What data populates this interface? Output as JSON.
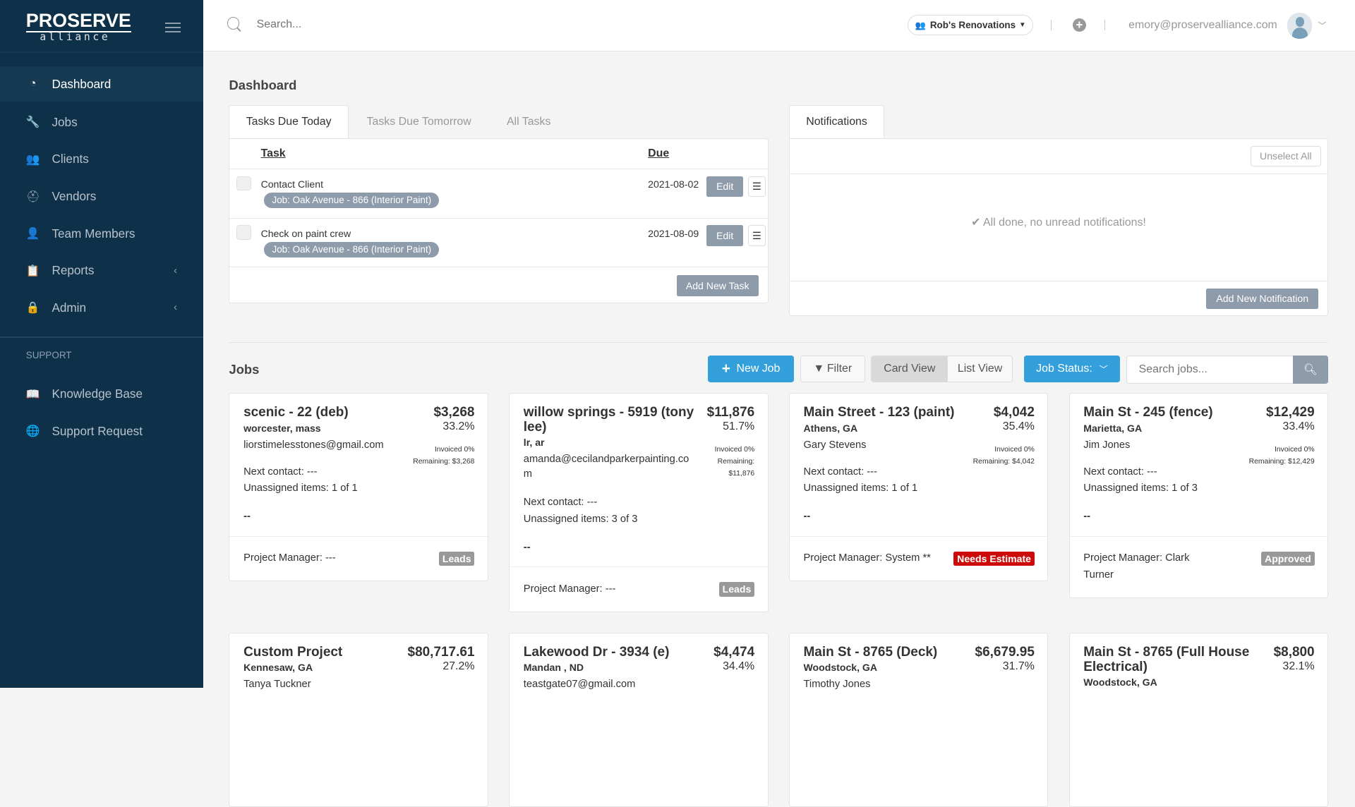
{
  "app": {
    "logo_top": "ProServe",
    "logo_bottom": "alliance"
  },
  "sidebar": {
    "items": [
      {
        "label": "Dashboard",
        "icon": "dashboard-icon",
        "glyph": "◔",
        "active": true
      },
      {
        "label": "Jobs",
        "icon": "wrench-icon",
        "glyph": "🔧"
      },
      {
        "label": "Clients",
        "icon": "users-icon",
        "glyph": "👥"
      },
      {
        "label": "Vendors",
        "icon": "hard-hat-icon",
        "glyph": "⛑"
      },
      {
        "label": "Team Members",
        "icon": "user-lock-icon",
        "glyph": "👤"
      },
      {
        "label": "Reports",
        "icon": "clipboard-icon",
        "glyph": "📋",
        "chevron": true
      },
      {
        "label": "Admin",
        "icon": "lock-icon",
        "glyph": "🔒",
        "chevron": true
      }
    ],
    "support_heading": "SUPPORT",
    "support_items": [
      {
        "label": "Knowledge Base",
        "icon": "book-icon",
        "glyph": "📖"
      },
      {
        "label": "Support Request",
        "icon": "globe-icon",
        "glyph": "🌐"
      }
    ]
  },
  "topbar": {
    "search_placeholder": "Search...",
    "org": "Rob's Renovations",
    "email": "emory@proservealliance.com"
  },
  "dashboard": {
    "title": "Dashboard",
    "tasks": {
      "tabs": [
        "Tasks Due Today",
        "Tasks Due Tomorrow",
        "All Tasks"
      ],
      "col_task": "Task",
      "col_due": "Due",
      "edit_label": "Edit",
      "add_label": "Add New Task",
      "rows": [
        {
          "name": "Contact Client",
          "job": "Job: Oak Avenue - 866 (Interior Paint)",
          "due": "2021-08-02"
        },
        {
          "name": "Check on paint crew",
          "job": "Job: Oak Avenue - 866 (Interior Paint)",
          "due": "2021-08-09"
        }
      ]
    },
    "notifications": {
      "tab": "Notifications",
      "unselect_label": "Unselect All",
      "empty": "All done, no unread notifications!",
      "add_label": "Add New Notification"
    }
  },
  "jobs": {
    "title": "Jobs",
    "new_job": "New Job",
    "filter": "Filter",
    "card_view": "Card View",
    "list_view": "List View",
    "job_status": "Job Status:",
    "search_placeholder": "Search jobs...",
    "colors": {
      "accent": "#33a0dc",
      "needs_estimate": "#cc0a0a",
      "neutral_badge": "#999999"
    },
    "cards": [
      {
        "title": "scenic - 22 (deb)",
        "amount": "$3,268",
        "pct": "33.2%",
        "location": "worcester, mass",
        "contact": "liorstimelesstones@gmail.com",
        "invoiced": "Invoiced 0%",
        "remaining": "Remaining: $3,268",
        "next_contact": "Next contact: ---",
        "unassigned": "Unassigned items: 1 of 1",
        "note": "--",
        "pm": "Project Manager: ---",
        "status": "Leads",
        "status_color": "#999999"
      },
      {
        "title": "willow springs - 5919 (tony lee)",
        "amount": "$11,876",
        "pct": "51.7%",
        "location": "lr, ar",
        "contact": "amanda@cecilandparkerpainting.com",
        "invoiced": "Invoiced 0%",
        "remaining": "Remaining: $11,876",
        "next_contact": "Next contact: ---",
        "unassigned": "Unassigned items: 3 of 3",
        "note": "--",
        "pm": "Project Manager: ---",
        "status": "Leads",
        "status_color": "#999999"
      },
      {
        "title": "Main Street - 123 (paint)",
        "amount": "$4,042",
        "pct": "35.4%",
        "location": "Athens, GA",
        "contact": "Gary Stevens",
        "invoiced": "Invoiced 0%",
        "remaining": "Remaining: $4,042",
        "next_contact": "Next contact: ---",
        "unassigned": "Unassigned items: 1 of 1",
        "note": "--",
        "pm": "Project Manager: System **",
        "status": "Needs Estimate",
        "status_color": "#cc0a0a"
      },
      {
        "title": "Main St - 245 (fence)",
        "amount": "$12,429",
        "pct": "33.4%",
        "location": "Marietta, GA",
        "contact": "Jim Jones",
        "invoiced": "Invoiced 0%",
        "remaining": "Remaining: $12,429",
        "next_contact": "Next contact: ---",
        "unassigned": "Unassigned items: 1 of 3",
        "note": "--",
        "pm": "Project Manager: Clark Turner",
        "status": "Approved",
        "status_color": "#999999"
      },
      {
        "title": "Custom Project",
        "amount": "$80,717.61",
        "pct": "27.2%",
        "location": "Kennesaw, GA",
        "contact": "Tanya Tuckner"
      },
      {
        "title": "Lakewood Dr - 3934 (e)",
        "amount": "$4,474",
        "pct": "34.4%",
        "location": "Mandan , ND",
        "contact": "teastgate07@gmail.com"
      },
      {
        "title": "Main St - 8765 (Deck)",
        "amount": "$6,679.95",
        "pct": "31.7%",
        "location": "Woodstock, GA",
        "contact": "Timothy Jones"
      },
      {
        "title": "Main St - 8765 (Full House Electrical)",
        "amount": "$8,800",
        "pct": "32.1%",
        "location": "Woodstock, GA"
      }
    ]
  }
}
